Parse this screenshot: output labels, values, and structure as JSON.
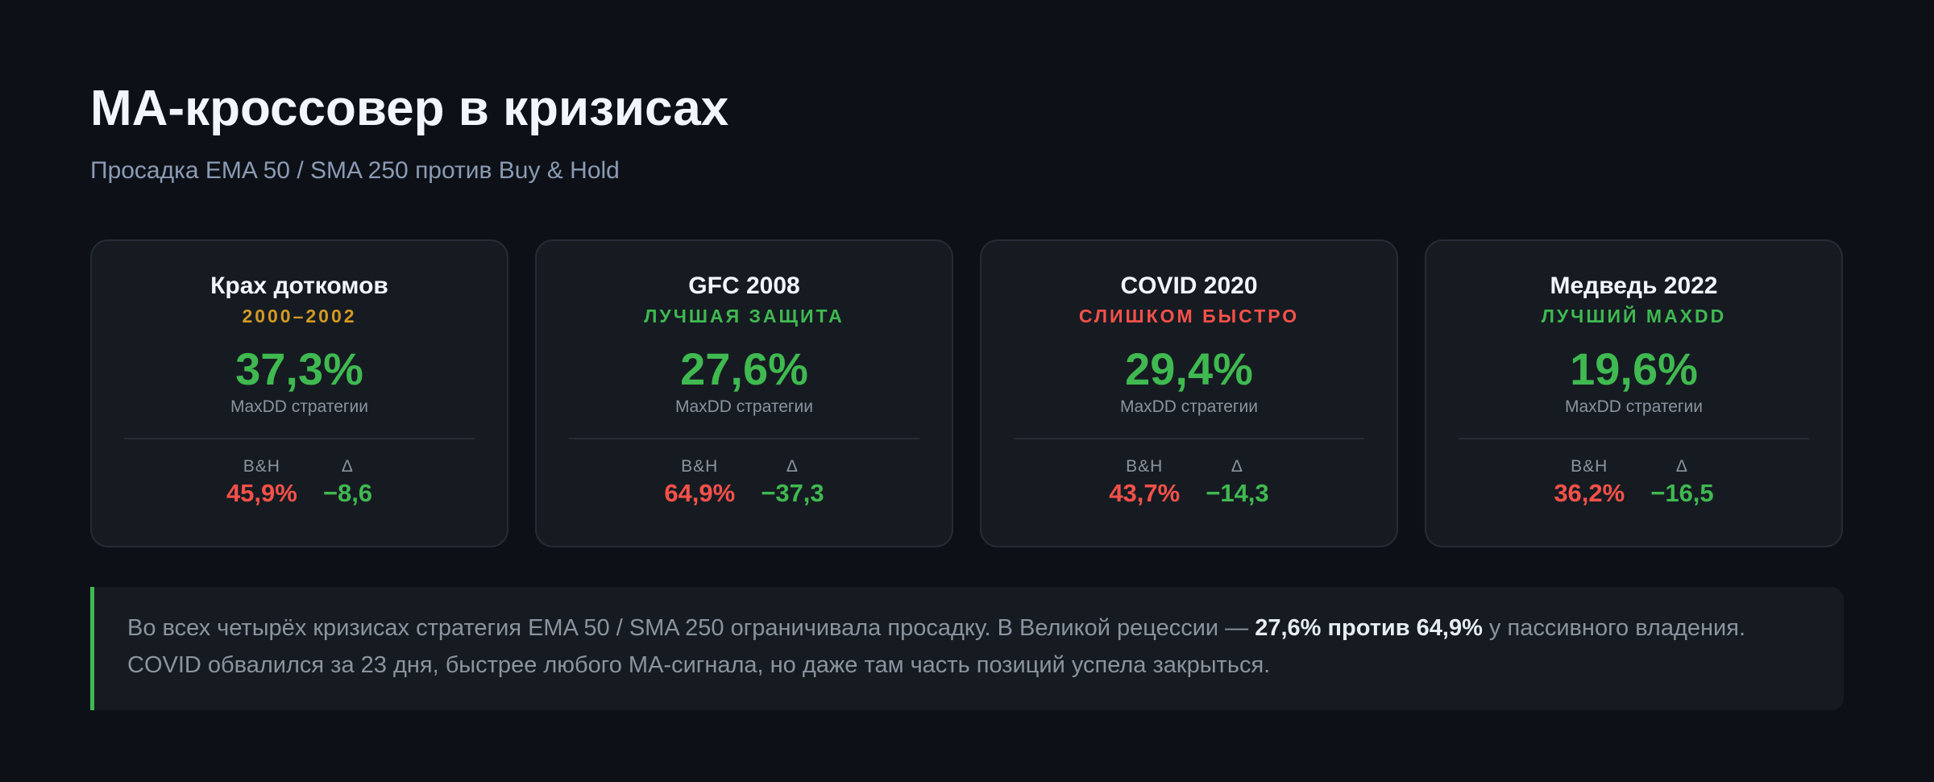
{
  "header": {
    "title": "MA-кроссовер в кризисах",
    "subtitle": "Просадка EMA 50 / SMA 250 против Buy & Hold"
  },
  "cards": [
    {
      "title": "Крах доткомов",
      "tag": "2000–2002",
      "tag_color": "#d29922",
      "maxdd": "37,3%",
      "maxdd_label": "MaxDD стратегии",
      "bh_label": "B&H",
      "bh": "45,9%",
      "delta_label": "Δ",
      "delta": "−8,6"
    },
    {
      "title": "GFC 2008",
      "tag": "ЛУЧШАЯ ЗАЩИТА",
      "tag_color": "#3fb950",
      "maxdd": "27,6%",
      "maxdd_label": "MaxDD стратегии",
      "bh_label": "B&H",
      "bh": "64,9%",
      "delta_label": "Δ",
      "delta": "−37,3"
    },
    {
      "title": "COVID 2020",
      "tag": "СЛИШКОМ БЫСТРО",
      "tag_color": "#f85149",
      "maxdd": "29,4%",
      "maxdd_label": "MaxDD стратегии",
      "bh_label": "B&H",
      "bh": "43,7%",
      "delta_label": "Δ",
      "delta": "−14,3"
    },
    {
      "title": "Медведь 2022",
      "tag": "ЛУЧШИЙ MAXDD",
      "tag_color": "#3fb950",
      "maxdd": "19,6%",
      "maxdd_label": "MaxDD стратегии",
      "bh_label": "B&H",
      "bh": "36,2%",
      "delta_label": "Δ",
      "delta": "−16,5"
    }
  ],
  "note": {
    "before": "Во всех четырёх кризисах стратегия EMA 50 / SMA 250 ограничивала просадку. В Великой рецессии — ",
    "bold": "27,6% против 64,9%",
    "after": " у пассивного владения. COVID обвалился за 23 дня, быстрее любого MA-сигнала, но даже там часть позиций успела закрыться."
  }
}
